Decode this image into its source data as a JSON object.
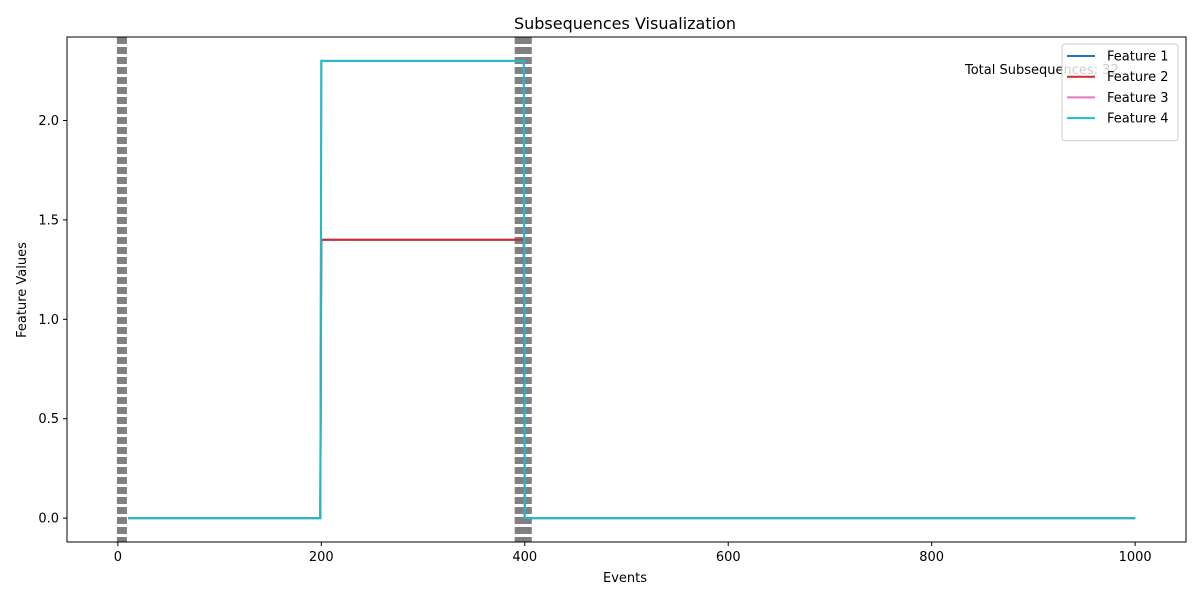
{
  "chart_data": {
    "type": "line",
    "title": "Subsequences Visualization",
    "xlabel": "Events",
    "ylabel": "Feature Values",
    "xlim": [
      -50,
      1050
    ],
    "ylim": [
      -0.12,
      2.42
    ],
    "x_ticks": [
      0,
      200,
      400,
      600,
      800,
      1000
    ],
    "y_ticks": [
      0.0,
      0.5,
      1.0,
      1.5,
      2.0
    ],
    "x_tick_labels": [
      "0",
      "200",
      "400",
      "600",
      "800",
      "1000"
    ],
    "y_tick_labels": [
      "0.0",
      "0.5",
      "1.0",
      "1.5",
      "2.0"
    ],
    "grid": false,
    "legend_position": "top-right",
    "annotation": "Total Subsequences: 32",
    "boundary_lines": [
      {
        "x": 4,
        "color": "#808080",
        "style": "dashed"
      },
      {
        "x": 395,
        "color": "#808080",
        "style": "dashed"
      },
      {
        "x": 402,
        "color": "#808080",
        "style": "dashed"
      }
    ],
    "series": [
      {
        "name": "Feature 1",
        "color": "#1f77b4",
        "points": [
          [
            10,
            0.0
          ],
          [
            199,
            0.0
          ],
          [
            200,
            1.4
          ],
          [
            399,
            1.4
          ],
          [
            400,
            0.0
          ],
          [
            1000,
            0.0
          ]
        ]
      },
      {
        "name": "Feature 2",
        "color": "#d62728",
        "points": [
          [
            10,
            0.0
          ],
          [
            199,
            0.0
          ],
          [
            200,
            1.4
          ],
          [
            399,
            1.4
          ],
          [
            400,
            0.0
          ],
          [
            1000,
            0.0
          ]
        ]
      },
      {
        "name": "Feature 3",
        "color": "#e377c2",
        "points": [
          [
            10,
            0.0
          ],
          [
            199,
            0.0
          ],
          [
            200,
            2.3
          ],
          [
            399,
            2.3
          ],
          [
            400,
            0.0
          ],
          [
            1000,
            0.0
          ]
        ]
      },
      {
        "name": "Feature 4",
        "color": "#17becf",
        "points": [
          [
            10,
            0.0
          ],
          [
            199,
            0.0
          ],
          [
            200,
            2.3
          ],
          [
            399,
            2.3
          ],
          [
            400,
            0.0
          ],
          [
            1000,
            0.0
          ]
        ]
      }
    ]
  }
}
